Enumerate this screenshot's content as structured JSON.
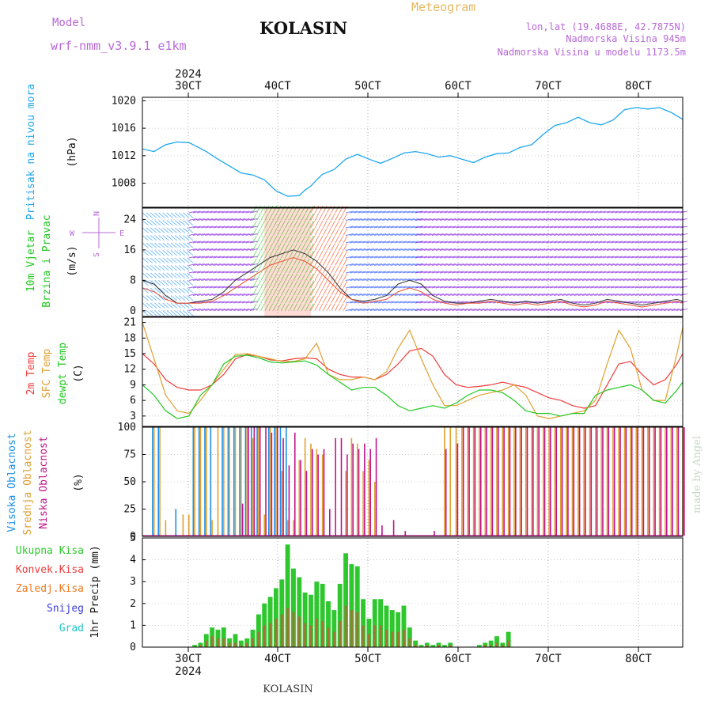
{
  "header": {
    "model_label": "Model",
    "model_name": "wrf-nmm_v3.9.1  e1km",
    "station": "KOLASIN",
    "product": "Meteogram",
    "lonlat": "lon,lat (19.4688E, 42.7875N)",
    "elevation": "Nadmorska Visina 945m",
    "model_elevation": "Nadmorska Visina u modelu 1173.5m",
    "footer_station": "KOLASIN",
    "watermark": "made by Angel"
  },
  "colors": {
    "pressure": "#1ea7f0",
    "wind_mag": "#333333",
    "temp2m": "#f03c3c",
    "sfc": "#e0a030",
    "dew": "#22c822",
    "high_cloud": "#1e90e6",
    "mid_cloud": "#e0a030",
    "low_cloud": "#c0148c",
    "precip_total": "#2ec82e",
    "precip_conv": "#f03c3c",
    "frozen": "#f07820",
    "snow": "#3c3cdc",
    "hail": "#20c8c8"
  },
  "time_axis": {
    "year": "2024",
    "days": [
      "30CT",
      "40CT",
      "50CT",
      "60CT",
      "70CT",
      "80CT"
    ],
    "xlim_hours": [
      -9,
      84
    ]
  },
  "chart_data": [
    {
      "type": "line",
      "panel": "pressure",
      "ylabel_primary": "Pritisak na nivou mora",
      "ylabel_unit": "(hPa)",
      "yticks": [
        "1008",
        "1012",
        "1016",
        "1020"
      ],
      "ylim": [
        1004.5,
        1020.5
      ],
      "x": [
        -9,
        -7,
        -5,
        -3,
        -1,
        0,
        2,
        4,
        6,
        8,
        10,
        12,
        14,
        16,
        18,
        19,
        20,
        21,
        22,
        24,
        26,
        28,
        30,
        32,
        34,
        36,
        38,
        40,
        42,
        44,
        46,
        48,
        50,
        52,
        54,
        56,
        58,
        60,
        62,
        64,
        66,
        68,
        70,
        72,
        74,
        76,
        78,
        80,
        82,
        84
      ],
      "series": [
        {
          "name": "",
          "values": [
            1013,
            1012.6,
            1013.6,
            1014.0,
            1013.9,
            1013.5,
            1012.6,
            1011.5,
            1010.5,
            1009.5,
            1009.2,
            1008.5,
            1006.9,
            1006.1,
            1006.2,
            1007,
            1007.6,
            1008.5,
            1009.3,
            1010.0,
            1011.5,
            1012.2,
            1011.5,
            1010.9,
            1011.6,
            1012.4,
            1012.6,
            1012.3,
            1011.8,
            1012.0,
            1011.5,
            1011.0,
            1011.8,
            1012.3,
            1012.4,
            1013.2,
            1013.6,
            1015.1,
            1016.4,
            1016.8,
            1017.6,
            1016.8,
            1016.5,
            1017.2,
            1018.7,
            1019.0,
            1018.8,
            1019.0,
            1018.3,
            1017.3
          ]
        }
      ]
    },
    {
      "type": "line",
      "panel": "wind",
      "ylabel_primary": "10m Vjetar",
      "ylabel_secondary": "Brzina i Pravac",
      "ylabel_unit": "(m/s)",
      "compass": [
        "N",
        "W",
        "E",
        "S"
      ],
      "yticks": [
        "0",
        "8",
        "16",
        "24"
      ],
      "ylim": [
        -1.5,
        27
      ],
      "x": [
        -9,
        -7,
        -5,
        -3,
        -1,
        1,
        3,
        5,
        7,
        9,
        11,
        13,
        15,
        17,
        19,
        21,
        23,
        25,
        27,
        29,
        31,
        33,
        35,
        37,
        39,
        41,
        43,
        45,
        47,
        49,
        51,
        53,
        55,
        57,
        59,
        61,
        63,
        65,
        67,
        69,
        71,
        73,
        75,
        77,
        79,
        81,
        83,
        84
      ],
      "series": [
        {
          "name": "",
          "values": [
            8,
            7,
            4,
            2,
            2,
            2.5,
            3,
            5,
            8,
            10,
            12,
            14,
            15,
            16,
            15,
            13,
            10,
            6,
            3,
            2.5,
            3,
            4,
            7,
            8,
            7,
            4,
            2.5,
            2,
            2,
            2.5,
            3,
            2.5,
            2,
            2.5,
            2,
            2.5,
            3,
            2,
            1.5,
            2,
            3,
            2.5,
            2,
            1.5,
            2,
            2.5,
            3,
            2.5
          ]
        },
        {
          "name": "",
          "values": [
            6,
            5,
            3,
            2,
            2,
            2,
            2.5,
            4,
            6,
            8,
            10,
            12,
            13,
            14,
            13,
            11,
            8,
            5,
            3,
            2,
            2.5,
            3,
            5,
            6,
            5,
            3,
            2,
            1.5,
            2,
            2,
            2.5,
            2,
            1.5,
            2,
            1.5,
            2,
            2.5,
            1.5,
            1,
            1.5,
            2.5,
            2,
            1.5,
            1,
            1.5,
            2,
            2.5,
            2
          ]
        }
      ]
    },
    {
      "type": "line",
      "panel": "temperature",
      "ylabel_primary": "2m Temp",
      "ylabel_secondary": "SFC Temp",
      "ylabel_tertiary": "dewpt Temp",
      "ylabel_unit": "(C)",
      "yticks": [
        "3",
        "6",
        "9",
        "12",
        "15",
        "18",
        "21"
      ],
      "ylim": [
        1,
        22
      ],
      "x": [
        -9,
        -7,
        -5,
        -3,
        -1,
        1,
        3,
        5,
        7,
        9,
        11,
        13,
        15,
        17,
        19,
        21,
        23,
        25,
        27,
        29,
        31,
        33,
        35,
        37,
        39,
        41,
        43,
        45,
        47,
        49,
        51,
        53,
        55,
        57,
        59,
        61,
        63,
        65,
        67,
        69,
        71,
        73,
        75,
        77,
        79,
        81,
        83,
        84
      ],
      "series": [
        {
          "name": "",
          "values": [
            15,
            13,
            10,
            8.5,
            8,
            8,
            9,
            11,
            14,
            14.8,
            14.5,
            13.8,
            13.6,
            14,
            14.2,
            14,
            12,
            11,
            10.5,
            10.5,
            10,
            11,
            13,
            15.5,
            16,
            14.5,
            11,
            9,
            8.5,
            8.7,
            9,
            9.5,
            9,
            8.5,
            7.5,
            6.5,
            6,
            5,
            4.5,
            5,
            9,
            13,
            13.5,
            11,
            9,
            10,
            13,
            15
          ]
        },
        {
          "name": "",
          "values": [
            21,
            14,
            7,
            4,
            3.5,
            6,
            9,
            12,
            14.8,
            15,
            14.5,
            14,
            13.5,
            13.5,
            14,
            17,
            11,
            10,
            10,
            10.5,
            10,
            11.5,
            16,
            19.5,
            14,
            9,
            5,
            5,
            6,
            7,
            7.5,
            8,
            9,
            7,
            3,
            2.5,
            3,
            3.5,
            4,
            6,
            13,
            19.5,
            16,
            8,
            6,
            6,
            15,
            20
          ]
        },
        {
          "name": "",
          "values": [
            9,
            7,
            4,
            2.5,
            3,
            7,
            9,
            13,
            14.5,
            14.7,
            14.2,
            13.4,
            13.2,
            13.4,
            13.6,
            12.8,
            11,
            9.5,
            8,
            8.5,
            8.5,
            7,
            5,
            4,
            4.5,
            5,
            4.5,
            5.5,
            7,
            8,
            8,
            7.5,
            6,
            4,
            3.5,
            3.5,
            3,
            3.5,
            3.5,
            7,
            8,
            8.5,
            9,
            8,
            6,
            5.5,
            8,
            9.5
          ]
        }
      ]
    },
    {
      "type": "bar",
      "panel": "clouds",
      "ylabel_primary": "Visoka Oblacnost",
      "ylabel_secondary": "Srednja Oblacnost",
      "ylabel_tertiary": "Niska Oblacnost",
      "ylabel_unit": "(%)",
      "yticks": [
        "0",
        "25",
        "50",
        "75",
        "100"
      ],
      "ylim": [
        0,
        100
      ],
      "x": [
        -7,
        -6,
        -5,
        -3,
        -2,
        -1,
        0,
        1,
        2,
        3,
        4,
        5,
        6,
        7,
        8,
        9,
        10,
        11,
        12,
        13,
        14,
        15,
        16,
        17,
        18,
        19,
        20,
        21,
        22,
        23,
        24,
        25,
        26,
        27,
        28,
        29,
        30,
        31,
        32,
        33,
        34,
        35,
        36,
        37,
        38,
        39,
        40,
        41,
        42,
        43,
        44,
        45,
        46,
        47,
        48,
        49,
        50,
        51,
        52,
        53,
        54,
        55,
        56,
        57,
        58,
        59,
        60,
        61,
        62,
        63,
        64,
        65,
        66,
        67,
        68,
        69,
        70,
        71,
        72,
        73,
        74,
        75,
        76,
        77,
        78,
        79,
        80,
        81,
        82,
        83,
        84
      ],
      "series": [
        {
          "name": "high",
          "values": [
            100,
            100,
            0,
            25,
            0,
            0,
            100,
            100,
            100,
            100,
            0,
            100,
            100,
            100,
            100,
            100,
            100,
            100,
            0,
            100,
            100,
            100,
            100,
            0,
            0,
            0,
            0,
            0,
            0,
            0,
            0,
            0,
            0,
            0,
            0,
            0,
            0,
            0,
            0,
            0,
            0,
            0,
            0,
            0,
            0,
            0,
            0,
            0,
            0,
            0,
            0,
            0,
            0,
            0,
            0,
            0,
            0,
            0,
            0,
            0,
            0,
            0,
            0,
            0,
            0,
            0,
            0,
            0,
            0,
            0,
            0,
            0,
            0,
            0,
            0,
            0,
            0,
            0,
            0,
            0,
            0,
            0,
            0,
            0,
            0,
            0,
            0,
            0,
            0,
            0,
            0
          ]
        },
        {
          "name": "mid",
          "values": [
            100,
            100,
            15,
            0,
            20,
            20,
            100,
            100,
            100,
            15,
            100,
            100,
            100,
            100,
            100,
            100,
            90,
            100,
            20,
            100,
            100,
            60,
            15,
            15,
            70,
            90,
            85,
            80,
            75,
            0,
            0,
            0,
            60,
            90,
            85,
            60,
            70,
            50,
            0,
            0,
            0,
            0,
            0,
            0,
            0,
            0,
            0,
            0,
            0,
            100,
            100,
            100,
            100,
            100,
            100,
            100,
            100,
            100,
            100,
            100,
            100,
            100,
            100,
            100,
            100,
            100,
            100,
            100,
            100,
            100,
            100,
            100,
            100,
            100,
            100,
            100,
            100,
            100,
            100,
            100,
            100,
            100,
            100,
            100,
            100,
            100,
            100,
            100,
            100,
            100,
            100
          ]
        },
        {
          "name": "low",
          "values": [
            0,
            0,
            0,
            0,
            0,
            0,
            0,
            0,
            0,
            0,
            0,
            0,
            0,
            0,
            30,
            100,
            100,
            100,
            100,
            95,
            100,
            90,
            65,
            95,
            70,
            60,
            80,
            75,
            80,
            25,
            90,
            90,
            75,
            85,
            80,
            85,
            80,
            90,
            10,
            0,
            15,
            0,
            5,
            0,
            0,
            0,
            0,
            5,
            0,
            80,
            0,
            85,
            100,
            100,
            100,
            100,
            100,
            100,
            100,
            100,
            100,
            100,
            100,
            100,
            100,
            100,
            100,
            100,
            100,
            100,
            100,
            100,
            100,
            100,
            100,
            100,
            100,
            100,
            100,
            100,
            100,
            100,
            100,
            100,
            100,
            100,
            100,
            100,
            100,
            100,
            100
          ]
        }
      ]
    },
    {
      "type": "bar",
      "panel": "precip",
      "legend": [
        "Ukupna  Kisa",
        "Konvek.Kisa",
        "Zaledj.Kisa",
        "Snijeg",
        "Grad"
      ],
      "ylabel_unit": "1hr Precip (mm)",
      "yticks": [
        "0",
        "1",
        "2",
        "3",
        "4",
        "5"
      ],
      "ylim": [
        0,
        5
      ],
      "x": [
        0,
        1,
        2,
        3,
        4,
        5,
        6,
        7,
        8,
        9,
        10,
        11,
        12,
        13,
        14,
        15,
        16,
        17,
        18,
        19,
        20,
        21,
        22,
        23,
        24,
        25,
        26,
        27,
        28,
        29,
        30,
        31,
        32,
        33,
        34,
        35,
        36,
        37,
        38,
        39,
        40,
        41,
        42,
        43,
        44,
        45,
        46,
        47,
        48,
        49,
        50,
        51,
        52,
        53,
        54,
        55,
        56,
        57,
        58,
        59,
        60,
        61,
        62,
        63,
        64,
        65,
        66,
        67,
        68,
        69,
        70,
        71,
        72,
        73,
        74,
        75,
        76,
        77,
        78,
        79,
        80,
        81,
        82,
        83,
        84
      ],
      "series": [
        {
          "name": "total",
          "values": [
            0.1,
            0.2,
            0.6,
            0.9,
            0.8,
            0.9,
            0.4,
            0.6,
            0.3,
            0.4,
            0.8,
            1.5,
            2.0,
            2.3,
            2.7,
            3.1,
            4.7,
            3.6,
            3.2,
            2.5,
            2.4,
            3.0,
            2.9,
            2.1,
            1.7,
            2.9,
            4.3,
            3.8,
            3.7,
            2.2,
            1.3,
            2.2,
            2.2,
            1.9,
            1.7,
            1.6,
            1.9,
            0.9,
            0.3,
            0.1,
            0.2,
            0.1,
            0.2,
            0.1,
            0.2,
            0,
            0,
            0,
            0,
            0.1,
            0.2,
            0.3,
            0.5,
            0.2,
            0.7,
            0,
            0,
            0,
            0,
            0,
            0,
            0,
            0,
            0,
            0,
            0,
            0,
            0,
            0,
            0,
            0,
            0,
            0,
            0,
            0,
            0,
            0,
            0,
            0,
            0,
            0,
            0,
            0,
            0,
            0
          ]
        },
        {
          "name": "convective",
          "values": [
            0,
            0.1,
            0.3,
            0.5,
            0.4,
            0.4,
            0.2,
            0.2,
            0.1,
            0.2,
            0.4,
            0.7,
            1.0,
            1.1,
            1.3,
            1.5,
            1.8,
            1.6,
            1.4,
            1.1,
            1.0,
            1.3,
            1.2,
            0.9,
            0.7,
            1.2,
            1.9,
            1.7,
            1.6,
            1.0,
            0.6,
            1.0,
            1.0,
            0.8,
            0.7,
            0.7,
            0.8,
            0.4,
            0.1,
            0,
            0.1,
            0,
            0.1,
            0,
            0.1,
            0,
            0,
            0,
            0,
            0,
            0.1,
            0.1,
            0.2,
            0.1,
            0.3,
            0,
            0,
            0,
            0,
            0,
            0,
            0,
            0,
            0,
            0,
            0,
            0,
            0,
            0,
            0,
            0,
            0,
            0,
            0,
            0,
            0,
            0,
            0,
            0,
            0,
            0,
            0,
            0,
            0,
            0
          ]
        }
      ]
    }
  ]
}
